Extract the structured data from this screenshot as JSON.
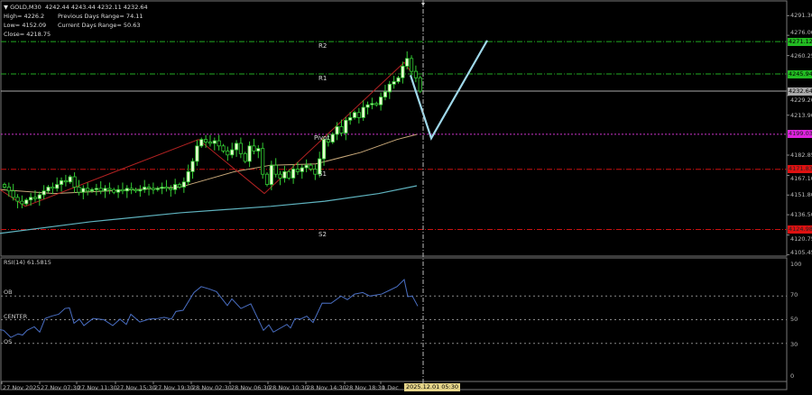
{
  "header": {
    "symbol": "GOLD,M30",
    "ohlc": "4242.44 4243.44 4232.11 4232.64",
    "high": "High= 4226.2",
    "low": "Low= 4152.09",
    "close": "Close= 4218.75",
    "prev_range": "Previous Days Range= 74.11",
    "curr_range": "Current Days Range= 50.63"
  },
  "colors": {
    "bull_fill": "#e8ffd0",
    "bear_fill": "#000000",
    "candle_outline": "#33cc33",
    "ma_slow": "#5fb3bf",
    "ma_fast": "#c9a97a",
    "zigzag": "#b22222",
    "forecast": "#9fd8ea",
    "rsi": "#4a6fc4",
    "pivot": "#cc33cc",
    "resistance": "#22aa22",
    "support": "#cc1111"
  },
  "price_axis": {
    "ticks": [
      "4291.30",
      "4276.00",
      "4260.25",
      "4229.20",
      "4213.90",
      "4182.85",
      "4167.10",
      "4151.80",
      "4136.50",
      "4120.75",
      "4105.45"
    ],
    "current_price": "4232.64"
  },
  "pivots": [
    {
      "label": "R2",
      "value": "4271.12",
      "type": "resistance"
    },
    {
      "label": "R1",
      "value": "4245.94",
      "type": "resistance"
    },
    {
      "label": "Pivot",
      "value": "4199.03",
      "type": "pivot"
    },
    {
      "label": "S1",
      "value": "4171.83",
      "type": "support"
    },
    {
      "label": "S2",
      "value": "4124.98",
      "type": "support"
    }
  ],
  "chart_data": {
    "type": "candlestick",
    "timeframe": "M30",
    "first_open": 4160,
    "closes": [
      4158,
      4155,
      4150,
      4147,
      4145,
      4148,
      4150,
      4149,
      4152,
      4155,
      4158,
      4157,
      4160,
      4163,
      4162,
      4166,
      4158,
      4154,
      4157,
      4155,
      4156,
      4157,
      4155,
      4157,
      4156,
      4154,
      4156,
      4155,
      4157,
      4156,
      4155,
      4156,
      4158,
      4157,
      4156,
      4157,
      4158,
      4157,
      4156,
      4160,
      4158,
      4162,
      4170,
      4178,
      4190,
      4195,
      4193,
      4192,
      4194,
      4190,
      4186,
      4183,
      4187,
      4192,
      4184,
      4178,
      4190,
      4186,
      4188,
      4168,
      4160,
      4175,
      4168,
      4165,
      4170,
      4165,
      4172,
      4170,
      4173,
      4175,
      4172,
      4168,
      4180,
      4195,
      4193,
      4199,
      4205,
      4200,
      4210,
      4212,
      4216,
      4212,
      4220,
      4222,
      4223,
      4222,
      4228,
      4232,
      4238,
      4240,
      4243,
      4252,
      4258,
      4248,
      4243,
      4232.64
    ],
    "ma_fast": [
      [
        0,
        4156
      ],
      [
        60,
        4153
      ],
      [
        150,
        4156
      ],
      [
        200,
        4158
      ],
      [
        260,
        4170
      ],
      [
        300,
        4175
      ],
      [
        350,
        4176
      ],
      [
        400,
        4185
      ],
      [
        440,
        4195
      ],
      [
        462,
        4199
      ]
    ],
    "ma_slow": [
      [
        0,
        4122
      ],
      [
        100,
        4131
      ],
      [
        200,
        4138
      ],
      [
        300,
        4143
      ],
      [
        360,
        4147
      ],
      [
        420,
        4153
      ],
      [
        462,
        4159
      ]
    ],
    "zigzag": [
      [
        0,
        4156
      ],
      [
        28,
        4143
      ],
      [
        220,
        4195
      ],
      [
        293,
        4153
      ],
      [
        448,
        4255
      ],
      [
        455,
        4248
      ]
    ],
    "forecast": [
      [
        455,
        4245
      ],
      [
        478,
        4196
      ],
      [
        540,
        4272
      ]
    ],
    "ylim": [
      4105.45,
      4291.3
    ],
    "time_labels": [
      "27 Nov 2025",
      "27 Nov 07:30",
      "27 Nov 11:30",
      "27 Nov 15:30",
      "27 Nov 19:30",
      "28 Nov 02:30",
      "28 Nov 06:30",
      "28 Nov 10:30",
      "28 Nov 14:30",
      "28 Nov 18:30",
      "1 Dec"
    ],
    "crosshair_time": "2025.12.01 05:30"
  },
  "rsi": {
    "title": "RSI(14) 61.5815",
    "levels": [
      "OB",
      "CENTER",
      "OS"
    ],
    "axis": [
      "100",
      "70",
      "50",
      "30",
      "0"
    ],
    "points": [
      [
        0,
        41.5
      ],
      [
        4,
        41
      ],
      [
        12,
        35
      ],
      [
        20,
        38
      ],
      [
        25,
        37
      ],
      [
        30,
        41
      ],
      [
        38,
        44
      ],
      [
        44,
        39.5
      ],
      [
        50,
        51
      ],
      [
        57,
        53
      ],
      [
        65,
        54.6
      ],
      [
        72,
        59.5
      ],
      [
        77,
        60
      ],
      [
        82,
        47
      ],
      [
        88,
        50.5
      ],
      [
        93,
        45
      ],
      [
        103,
        51
      ],
      [
        115,
        50
      ],
      [
        125,
        45
      ],
      [
        133,
        50.5
      ],
      [
        140,
        46
      ],
      [
        145,
        54.6
      ],
      [
        155,
        48
      ],
      [
        165,
        50.5
      ],
      [
        175,
        51
      ],
      [
        182,
        52
      ],
      [
        190,
        50.5
      ],
      [
        195,
        57
      ],
      [
        203,
        58
      ],
      [
        215,
        73
      ],
      [
        223,
        78
      ],
      [
        232,
        76
      ],
      [
        240,
        73.7
      ],
      [
        252,
        62
      ],
      [
        257,
        67.6
      ],
      [
        267,
        59.5
      ],
      [
        278,
        63.4
      ],
      [
        292,
        41
      ],
      [
        298,
        45.6
      ],
      [
        303,
        39.5
      ],
      [
        318,
        46
      ],
      [
        322,
        43
      ],
      [
        327,
        51
      ],
      [
        333,
        50.5
      ],
      [
        340,
        53
      ],
      [
        347,
        47.6
      ],
      [
        357,
        64
      ],
      [
        367,
        63.9
      ],
      [
        378,
        70
      ],
      [
        385,
        67
      ],
      [
        393,
        71.7
      ],
      [
        402,
        73
      ],
      [
        410,
        70
      ],
      [
        423,
        71.7
      ],
      [
        432,
        75
      ],
      [
        440,
        78
      ],
      [
        448,
        84
      ],
      [
        452,
        69.5
      ],
      [
        457,
        70
      ],
      [
        463,
        61.5
      ]
    ]
  }
}
